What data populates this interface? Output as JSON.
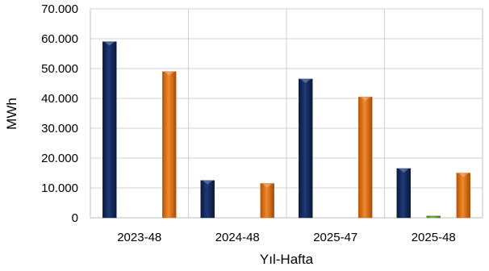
{
  "chart_data": {
    "type": "bar",
    "xlabel": "Yıl-Hafta",
    "ylabel": "MWh",
    "categories": [
      "2023-48",
      "2024-48",
      "2025-47",
      "2025-48"
    ],
    "series": [
      {
        "values": [
          59000,
          12500,
          46500,
          16500
        ],
        "color": "#142a5c"
      },
      {
        "values": [
          0,
          0,
          0,
          600
        ],
        "color": "#4f9a2a"
      },
      {
        "values": [
          49000,
          11500,
          40500,
          15000
        ],
        "color": "#d96a12"
      }
    ],
    "ylim": [
      0,
      70000
    ],
    "yticks": [
      "0",
      "10.000",
      "20.000",
      "30.000",
      "40.000",
      "50.000",
      "60.000",
      "70.000"
    ],
    "grid": true
  }
}
